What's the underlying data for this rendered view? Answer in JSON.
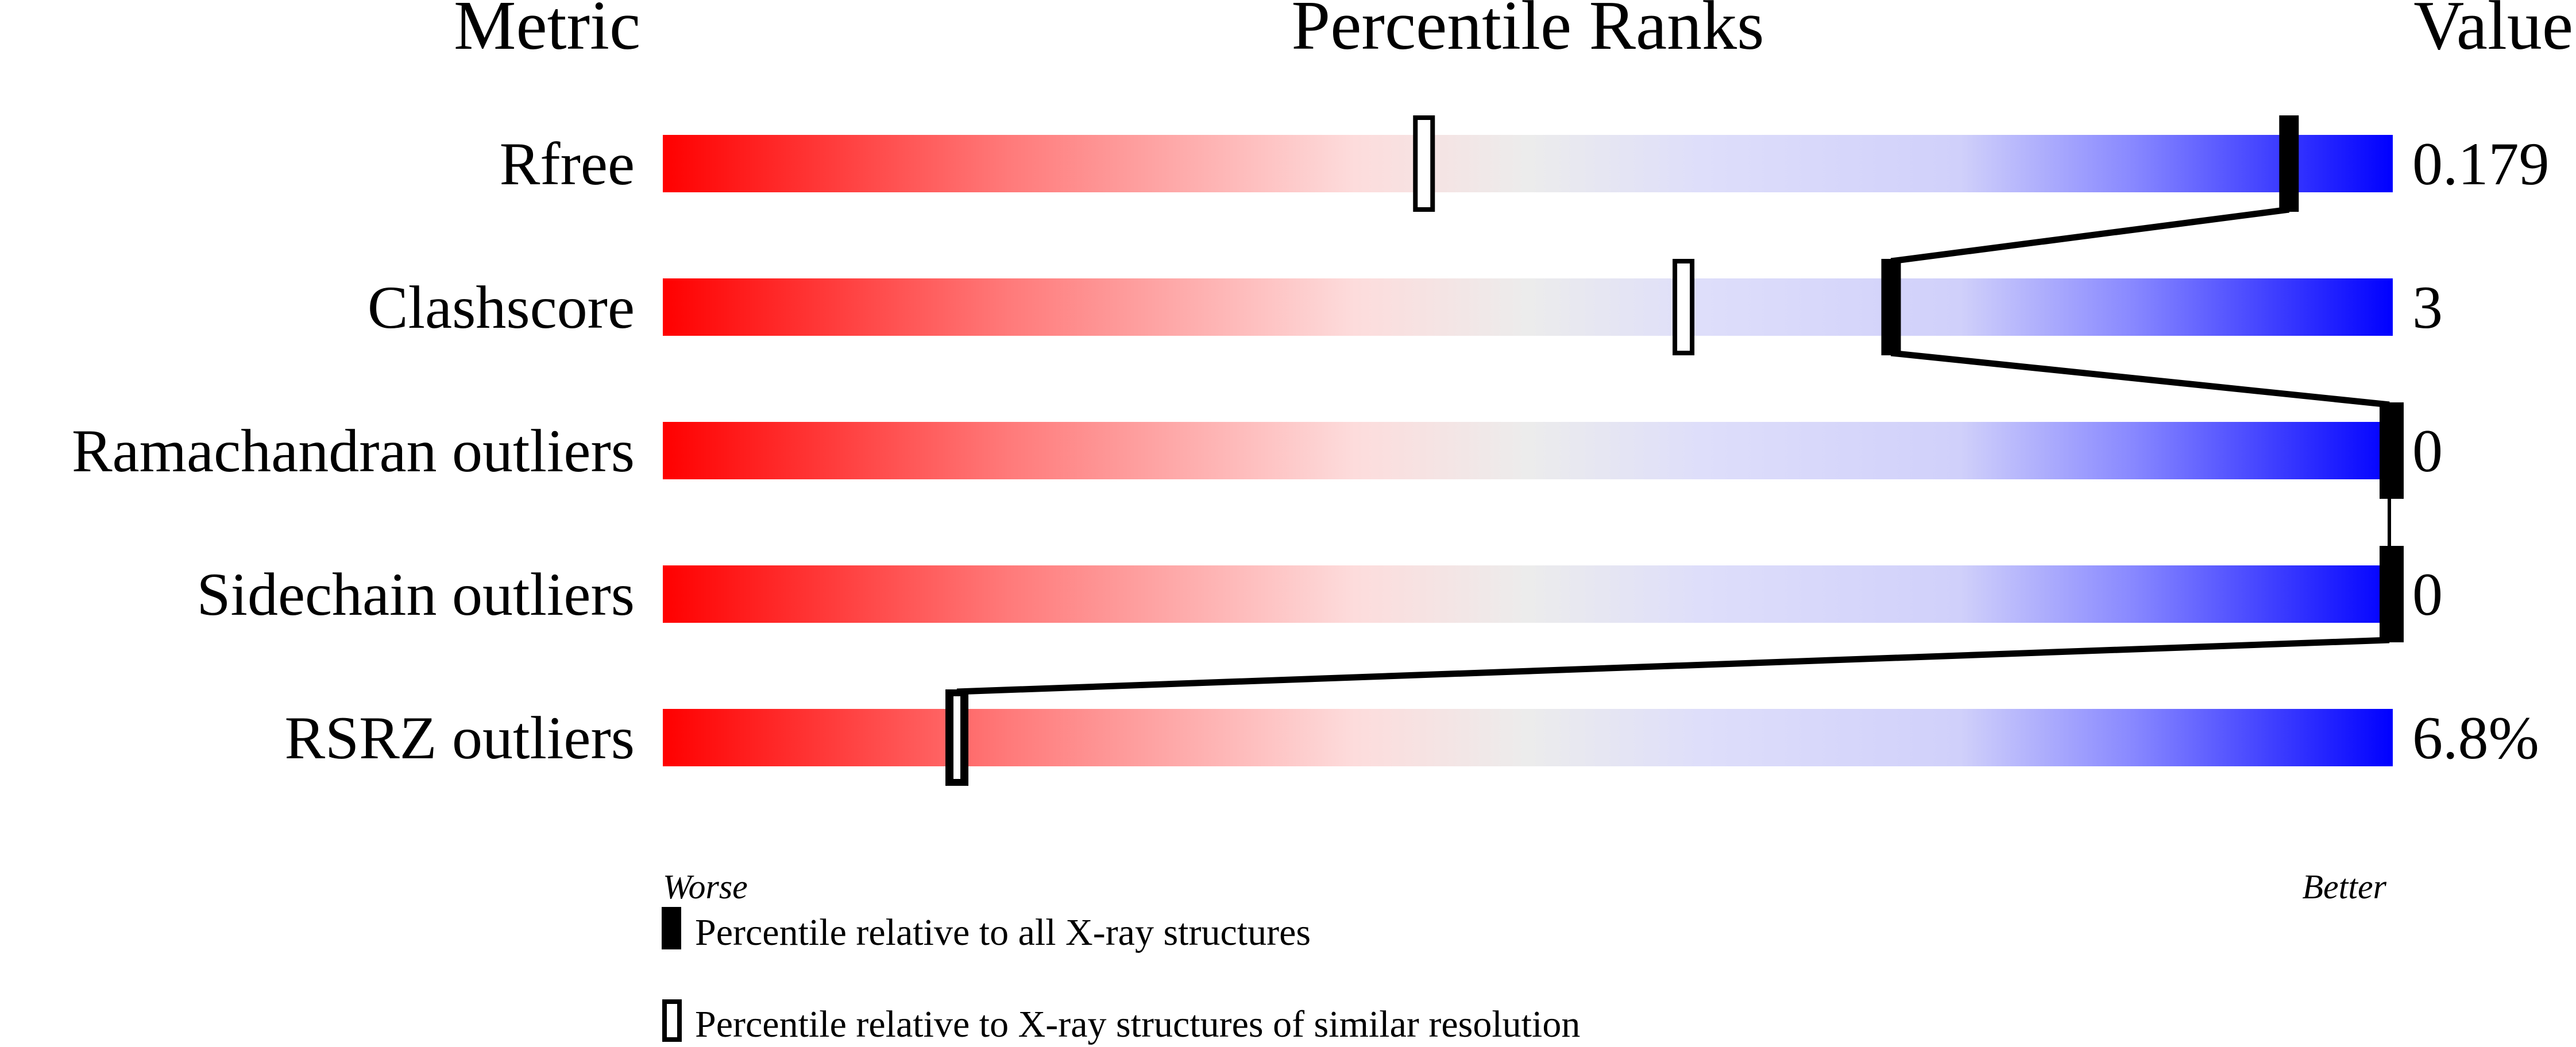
{
  "chart_data": {
    "type": "bar",
    "headers": {
      "metric": "Metric",
      "ranks": "Percentile Ranks",
      "value": "Value"
    },
    "xlim": [
      0,
      100
    ],
    "axis_left": "Worse",
    "axis_right": "Better",
    "rows": [
      {
        "metric": "Rfree",
        "value": "0.179",
        "percentile_all": 94,
        "percentile_similar": 44
      },
      {
        "metric": "Clashscore",
        "value": "3",
        "percentile_all": 71,
        "percentile_similar": 59
      },
      {
        "metric": "Ramachandran outliers",
        "value": "0",
        "percentile_all": 100,
        "percentile_similar": 100
      },
      {
        "metric": "Sidechain outliers",
        "value": "0",
        "percentile_all": 100,
        "percentile_similar": 100
      },
      {
        "metric": "RSRZ outliers",
        "value": "6.8%",
        "percentile_all": 17,
        "percentile_similar": 17
      }
    ],
    "legend": {
      "all": "Percentile relative to all X-ray structures",
      "similar": "Percentile relative to X-ray structures of similar resolution"
    },
    "gradient_colors": {
      "worse": "#ff0000",
      "middle": "#eeeeee",
      "better": "#0000ff"
    }
  }
}
